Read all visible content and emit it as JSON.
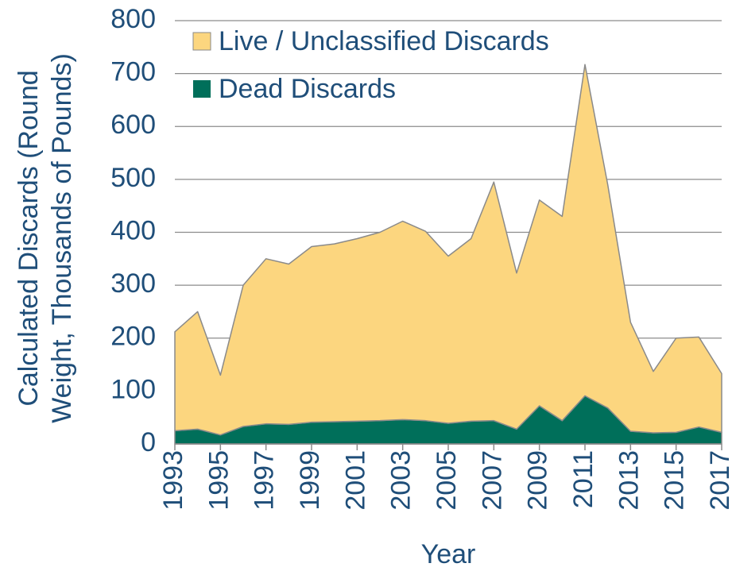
{
  "chart_data": {
    "type": "stacked_area",
    "ylabel": [
      "Calculated Discards (Round",
      "Weight, Thousands of Pounds)"
    ],
    "xlabel": "Year",
    "x": [
      1993,
      1994,
      1995,
      1996,
      1997,
      1998,
      1999,
      2000,
      2001,
      2002,
      2003,
      2004,
      2005,
      2006,
      2007,
      2008,
      2009,
      2010,
      2011,
      2012,
      2013,
      2014,
      2015,
      2016,
      2017
    ],
    "series": [
      {
        "name": "Live / Unclassified Discards",
        "color": "#fcd67f",
        "values": [
          187,
          222,
          113,
          267,
          312,
          303,
          332,
          336,
          345,
          356,
          375,
          358,
          316,
          345,
          451,
          295,
          389,
          386,
          626,
          422,
          206,
          116,
          178,
          170,
          111
        ]
      },
      {
        "name": "Dead Discards",
        "color": "#006f5a",
        "values": [
          25,
          28,
          17,
          33,
          38,
          37,
          41,
          42,
          43,
          44,
          46,
          44,
          39,
          43,
          44,
          28,
          72,
          44,
          91,
          68,
          24,
          21,
          22,
          32,
          22
        ]
      }
    ],
    "xlim": [
      1993,
      2017
    ],
    "xticks": [
      1993,
      1995,
      1997,
      1999,
      2001,
      2003,
      2005,
      2007,
      2009,
      2011,
      2013,
      2015,
      2017
    ],
    "ylim": [
      0,
      800
    ],
    "yticks": [
      0,
      100,
      200,
      300,
      400,
      500,
      600,
      700,
      800
    ],
    "grid": true,
    "legend": "upper left"
  }
}
